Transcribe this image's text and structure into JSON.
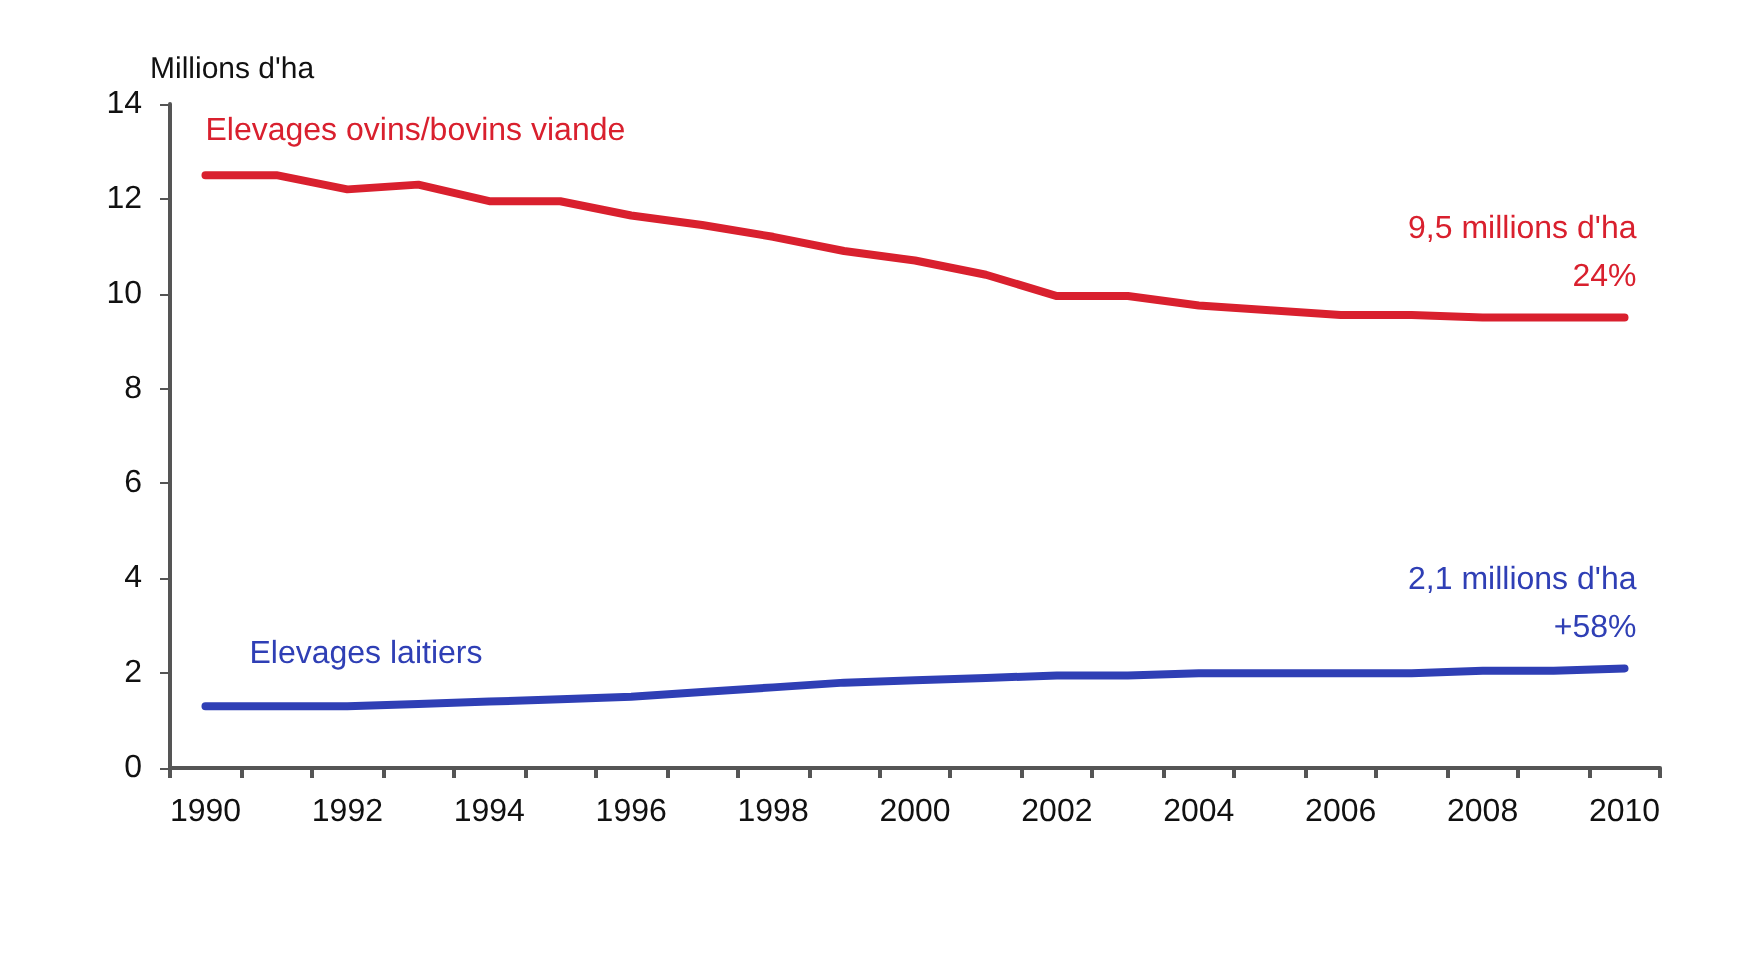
{
  "chart_data": {
    "type": "line",
    "ylabel": "Millions d'ha",
    "categories": [
      "1990",
      null,
      "1992",
      null,
      "1994",
      null,
      "1996",
      null,
      "1998",
      null,
      "2000",
      null,
      "2002",
      null,
      "2004",
      null,
      "2006",
      null,
      "2008",
      null,
      "2010"
    ],
    "series": [
      {
        "name": "Elevages ovins/bovins viande",
        "color": "#d9202e",
        "values": [
          12.5,
          12.5,
          12.2,
          12.3,
          11.95,
          11.95,
          11.65,
          11.45,
          11.2,
          10.9,
          10.7,
          10.4,
          9.95,
          9.95,
          9.75,
          9.65,
          9.55,
          9.55,
          9.5,
          9.5,
          9.5
        ]
      },
      {
        "name": "Elevages laitiers",
        "color": "#2f3fb5",
        "values": [
          1.3,
          1.3,
          1.3,
          1.35,
          1.4,
          1.45,
          1.5,
          1.6,
          1.7,
          1.8,
          1.85,
          1.9,
          1.95,
          1.95,
          2.0,
          2.0,
          2.0,
          2.0,
          2.05,
          2.05,
          2.1
        ]
      }
    ],
    "annotations": [
      {
        "text": "9,5 millions d'ha\n24%",
        "x": "2010",
        "y": 9.5
      },
      {
        "text": "2,1 millions d'ha\n+58%",
        "x": "2010",
        "y": 2.1
      }
    ],
    "ylim": [
      0,
      14
    ],
    "yticks": [
      0,
      2,
      4,
      6,
      8,
      10,
      12,
      14
    ],
    "grid": false,
    "legend": false,
    "marker": "none",
    "line_style": "solid"
  }
}
